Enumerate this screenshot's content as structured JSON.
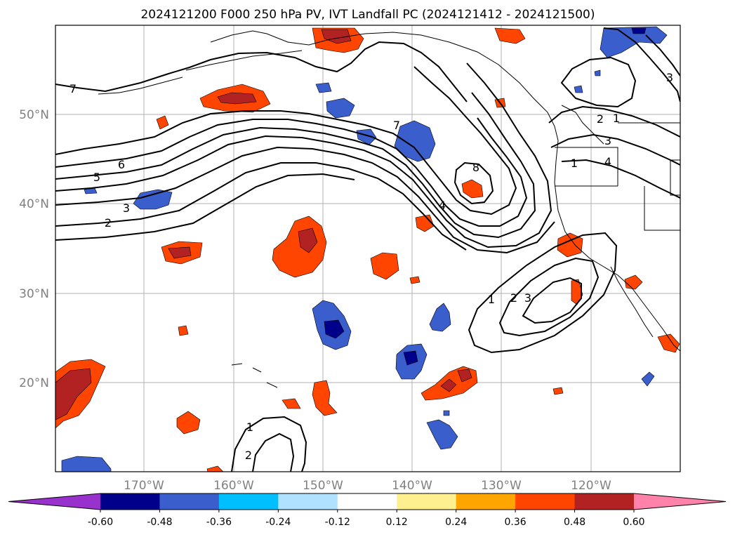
{
  "title": "2024121200 F000 250 hPa PV, IVT Landfall PC (2024121412 - 2024121500)",
  "axes": {
    "lon_labels": [
      "170°W",
      "160°W",
      "150°W",
      "140°W",
      "130°W",
      "120°W"
    ],
    "lat_labels": [
      "50°N",
      "40°N",
      "30°N",
      "20°N"
    ],
    "lon_range": [
      -180,
      -110
    ],
    "lat_range": [
      10,
      60
    ],
    "gridlines": true
  },
  "colorbar": {
    "levels": [
      "-0.60",
      "-0.48",
      "-0.36",
      "-0.24",
      "-0.12",
      "0.12",
      "0.24",
      "0.36",
      "0.48",
      "0.60"
    ],
    "colors": [
      "#9932cc",
      "#00008b",
      "#3a5fcd",
      "#00bfff",
      "#b0e2ff",
      "#ffffff",
      "#fff08f",
      "#ffa500",
      "#ff4500",
      "#b22222",
      "#ff82ab"
    ],
    "extend": "both"
  },
  "contour_labels": [
    "7",
    "6",
    "5",
    "3",
    "2",
    "7",
    "8",
    "4",
    "1",
    "2",
    "3",
    "4",
    "3",
    "1",
    "1",
    "2",
    "3",
    "1",
    "2"
  ],
  "chart_data": {
    "type": "heatmap",
    "field": "IVT landfall PC correlation (shaded), 250 hPa PV (contours)",
    "shade_levels": [
      -0.6,
      -0.48,
      -0.36,
      -0.24,
      -0.12,
      0.12,
      0.24,
      0.36,
      0.48,
      0.6
    ],
    "pv_contour_levels": [
      1,
      2,
      3,
      4,
      5,
      6,
      7,
      8
    ]
  }
}
